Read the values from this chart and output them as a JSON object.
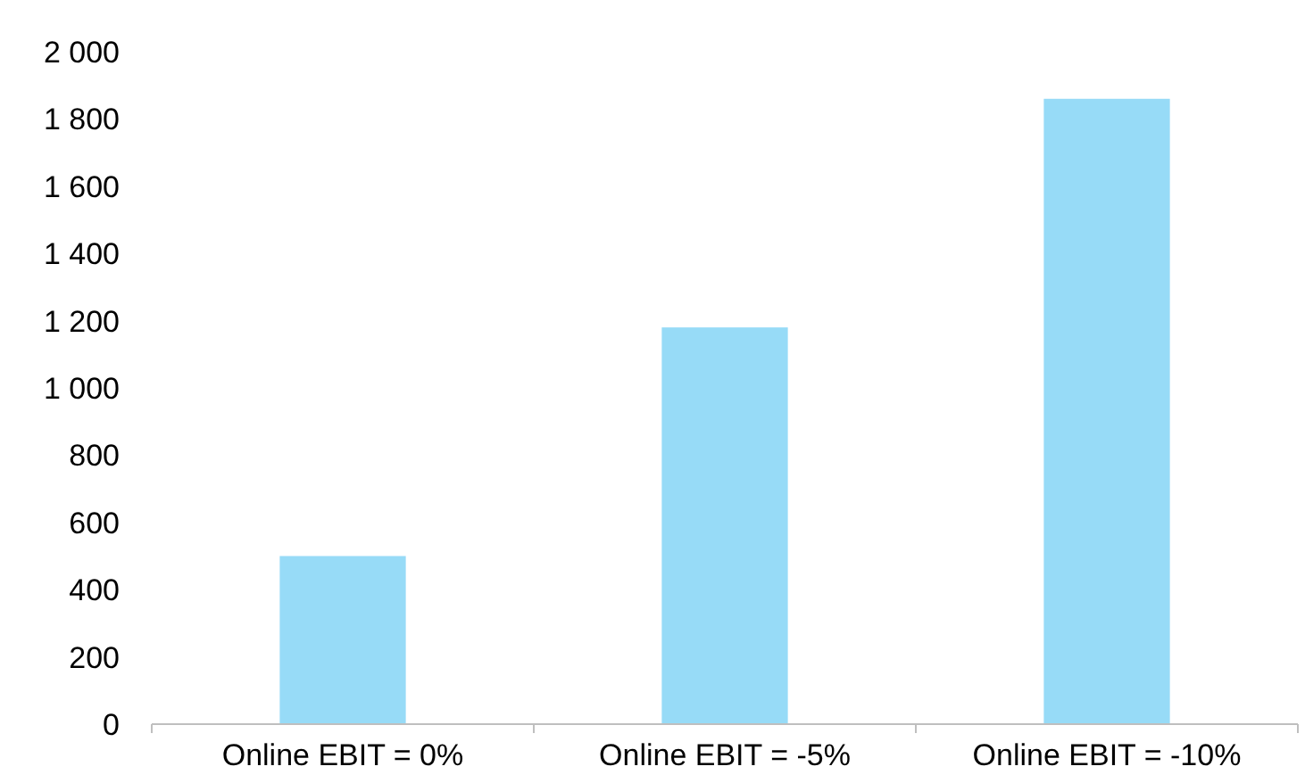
{
  "chart_data": {
    "type": "bar",
    "categories": [
      "Online EBIT = 0%",
      "Online EBIT = -5%",
      "Online EBIT = -10%"
    ],
    "values": [
      500,
      1180,
      1860
    ],
    "color": "#97dbf7",
    "ylim": [
      0,
      2000
    ],
    "yticks": [
      0,
      200,
      400,
      600,
      800,
      {
        "value": 1000,
        "label": "1 000"
      },
      {
        "value": 1200,
        "label": "1 200"
      },
      {
        "value": 1400,
        "label": "1 400"
      },
      {
        "value": 1600,
        "label": "1 600"
      },
      {
        "value": 1800,
        "label": "1 800"
      },
      {
        "value": 2000,
        "label": "2 000"
      }
    ],
    "grid": false
  }
}
